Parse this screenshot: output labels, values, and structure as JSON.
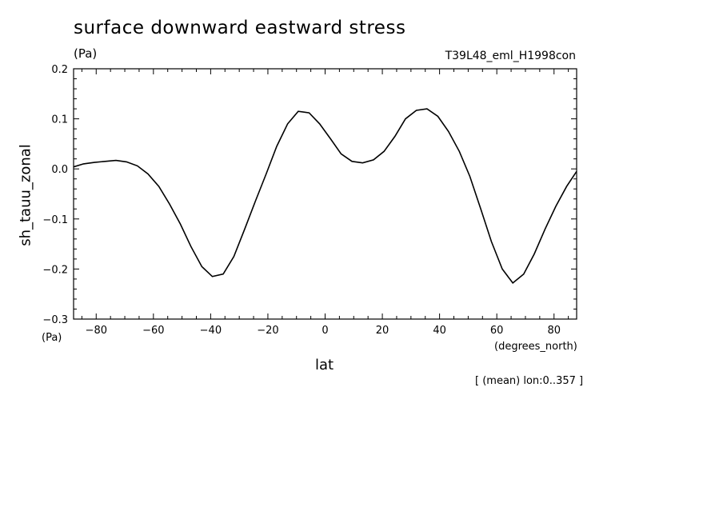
{
  "header": {
    "title": "surface downward eastward stress",
    "units_top": "(Pa)",
    "run_id": "T39L48_eml_H1998con"
  },
  "footer": {
    "units_bottom": "(Pa)",
    "x_units": "(degrees_north)",
    "mean_note": "[ (mean) lon:0..357 ]"
  },
  "chart_data": {
    "type": "line",
    "title": "surface downward eastward stress",
    "xlabel": "lat",
    "ylabel": "sh_tauu_zonal",
    "xlim": [
      -87.9,
      87.9
    ],
    "ylim": [
      -0.3,
      0.2
    ],
    "xticks": [
      -80,
      -60,
      -40,
      -20,
      0,
      20,
      40,
      60,
      80
    ],
    "xtick_labels": [
      "−80",
      "−60",
      "−40",
      "−20",
      "0",
      "20",
      "40",
      "60",
      "80"
    ],
    "yticks": [
      0.2,
      0.1,
      0.0,
      -0.1,
      -0.2,
      -0.3
    ],
    "ytick_labels": [
      "0.2",
      "0.1",
      "0.0",
      "−0.1",
      "−0.2",
      "−0.3"
    ],
    "grid": false,
    "color": "#000000",
    "series": [
      {
        "x": [
          -87.9,
          -84.4,
          -80.6,
          -76.9,
          -73.1,
          -69.4,
          -65.6,
          -61.9,
          -58.1,
          -54.4,
          -50.6,
          -46.9,
          -43.1,
          -39.4,
          -35.6,
          -31.9,
          -28.1,
          -24.4,
          -20.6,
          -16.9,
          -13.1,
          -9.4,
          -5.6,
          -1.9,
          1.9,
          5.6,
          9.4,
          13.1,
          16.9,
          20.6,
          24.4,
          28.1,
          31.9,
          35.6,
          39.4,
          43.1,
          46.9,
          50.6,
          54.4,
          58.1,
          61.9,
          65.6,
          69.4,
          73.1,
          76.9,
          80.6,
          84.4,
          87.9
        ],
        "values": [
          0.004,
          0.01,
          0.013,
          0.015,
          0.017,
          0.014,
          0.006,
          -0.01,
          -0.035,
          -0.07,
          -0.11,
          -0.155,
          -0.195,
          -0.215,
          -0.21,
          -0.175,
          -0.12,
          -0.065,
          -0.01,
          0.045,
          0.09,
          0.115,
          0.112,
          0.09,
          0.06,
          0.03,
          0.015,
          0.012,
          0.018,
          0.035,
          0.065,
          0.1,
          0.117,
          0.12,
          0.105,
          0.075,
          0.035,
          -0.015,
          -0.08,
          -0.145,
          -0.2,
          -0.228,
          -0.21,
          -0.17,
          -0.12,
          -0.075,
          -0.035,
          -0.005
        ]
      }
    ]
  }
}
